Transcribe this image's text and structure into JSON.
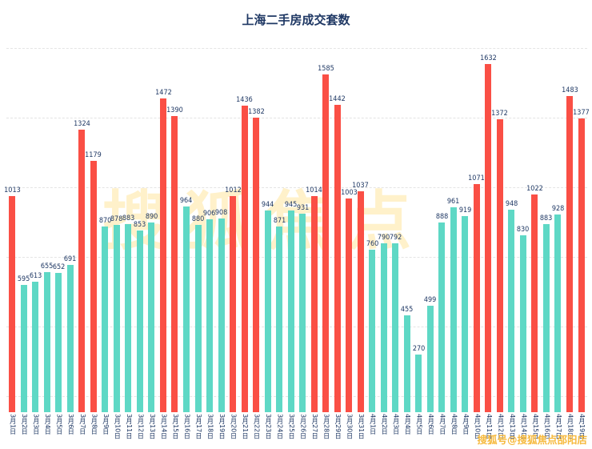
{
  "title": "上海二手房成交套数",
  "watermark": {
    "center": "搜狐焦点",
    "bottom_right": "搜狐号@搜狐焦点邵阳店"
  },
  "colors": {
    "bar_high": "#fa4f45",
    "bar_normal": "#5ed8c5",
    "threshold": 1000,
    "text": "#1f3864",
    "grid": "#e4e4e4",
    "watermark": "#ffd45e"
  },
  "chart_data": {
    "type": "bar",
    "title": "上海二手房成交套数",
    "categories": [
      "3月1日",
      "3月2日",
      "3月3日",
      "3月4日",
      "3月5日",
      "3月6日",
      "3月7日",
      "3月8日",
      "3月9日",
      "3月10日",
      "3月11日",
      "3月12日",
      "3月13日",
      "3月14日",
      "3月15日",
      "3月16日",
      "3月17日",
      "3月18日",
      "3月19日",
      "3月20日",
      "3月21日",
      "3月22日",
      "3月23日",
      "3月24日",
      "3月25日",
      "3月26日",
      "3月27日",
      "3月28日",
      "3月29日",
      "3月30日",
      "3月31日",
      "4月1日",
      "4月2日",
      "4月3日",
      "4月4日",
      "4月5日",
      "4月6日",
      "4月7日",
      "4月8日",
      "4月9日",
      "4月10日",
      "4月11日",
      "4月12日",
      "4月13日",
      "4月14日",
      "4月15日",
      "4月16日",
      "4月17日",
      "4月18日",
      "4月19日"
    ],
    "values": [
      1013,
      595,
      613,
      655,
      652,
      691,
      1324,
      1179,
      870,
      878,
      883,
      853,
      890,
      1472,
      1390,
      964,
      880,
      906,
      908,
      1012,
      1436,
      1382,
      944,
      871,
      945,
      931,
      1014,
      1585,
      1442,
      1003,
      1037,
      760,
      790,
      792,
      455,
      270,
      499,
      888,
      961,
      919,
      1071,
      1632,
      1372,
      948,
      830,
      1022,
      883,
      928,
      1483,
      1377
    ],
    "ylim": [
      0,
      1700
    ],
    "grid": true,
    "legend": "none",
    "data_labels": "above each bar",
    "bar_color_rule": "value >= 1000 colored red (#fa4f45), value < 1000 colored teal (#5ed8c5)"
  }
}
